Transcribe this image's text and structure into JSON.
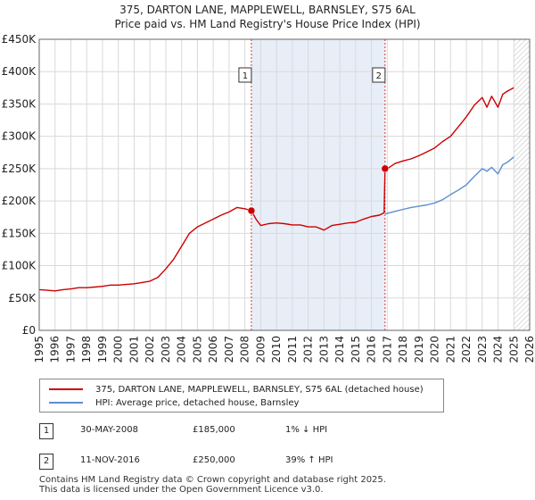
{
  "header": {
    "title_line1": "375, DARTON LANE, MAPPLEWELL, BARNSLEY, S75 6AL",
    "title_line2": "Price paid vs. HM Land Registry's House Price Index (HPI)"
  },
  "chart_data": {
    "type": "line",
    "title": "375, DARTON LANE, MAPPLEWELL, BARNSLEY, S75 6AL — Price paid vs. HM Land Registry's House Price Index (HPI)",
    "xlim": [
      1995,
      2026
    ],
    "ylim": [
      0,
      450000
    ],
    "grid": true,
    "x_ticks": [
      1995,
      1996,
      1997,
      1998,
      1999,
      2000,
      2001,
      2002,
      2003,
      2004,
      2005,
      2006,
      2007,
      2008,
      2009,
      2010,
      2011,
      2012,
      2013,
      2014,
      2015,
      2016,
      2017,
      2018,
      2019,
      2020,
      2021,
      2022,
      2023,
      2024,
      2025,
      2026
    ],
    "y_ticks": [
      {
        "value": 0,
        "label": "£0"
      },
      {
        "value": 50000,
        "label": "£50K"
      },
      {
        "value": 100000,
        "label": "£100K"
      },
      {
        "value": 150000,
        "label": "£150K"
      },
      {
        "value": 200000,
        "label": "£200K"
      },
      {
        "value": 250000,
        "label": "£250K"
      },
      {
        "value": 300000,
        "label": "£300K"
      },
      {
        "value": 350000,
        "label": "£350K"
      },
      {
        "value": 400000,
        "label": "£400K"
      },
      {
        "value": 450000,
        "label": "£450K"
      }
    ],
    "shaded_period": [
      2008.41,
      2016.86
    ],
    "forecast_start": 2025.0,
    "series": [
      {
        "name": "375, DARTON LANE, MAPPLEWELL, BARNSLEY, S75 6AL (detached house)",
        "color": "#cc0000",
        "x": [
          1995.0,
          1995.5,
          1996.0,
          1996.5,
          1997.0,
          1997.5,
          1998.0,
          1998.5,
          1999.0,
          1999.5,
          2000.0,
          2000.5,
          2001.0,
          2001.5,
          2002.0,
          2002.5,
          2003.0,
          2003.5,
          2004.0,
          2004.5,
          2005.0,
          2005.5,
          2006.0,
          2006.5,
          2007.0,
          2007.5,
          2008.0,
          2008.41,
          2008.7,
          2009.0,
          2009.5,
          2010.0,
          2010.5,
          2011.0,
          2011.5,
          2012.0,
          2012.5,
          2013.0,
          2013.5,
          2014.0,
          2014.5,
          2015.0,
          2015.5,
          2016.0,
          2016.5,
          2016.8,
          2016.86,
          2017.0,
          2017.5,
          2018.0,
          2018.5,
          2019.0,
          2019.5,
          2020.0,
          2020.5,
          2021.0,
          2021.5,
          2022.0,
          2022.5,
          2023.0,
          2023.3,
          2023.6,
          2024.0,
          2024.3,
          2024.6,
          2025.0
        ],
        "y": [
          63000,
          62000,
          61000,
          63000,
          64000,
          66000,
          66000,
          67000,
          68000,
          70000,
          70000,
          71000,
          72000,
          74000,
          76000,
          82000,
          95000,
          110000,
          130000,
          150000,
          160000,
          166000,
          172000,
          178000,
          183000,
          190000,
          188000,
          185000,
          172000,
          162000,
          165000,
          166000,
          165000,
          163000,
          163000,
          160000,
          160000,
          155000,
          162000,
          164000,
          166000,
          167000,
          172000,
          176000,
          178000,
          182000,
          250000,
          250000,
          258000,
          262000,
          265000,
          270000,
          276000,
          282000,
          292000,
          300000,
          315000,
          330000,
          348000,
          360000,
          345000,
          362000,
          345000,
          365000,
          370000,
          375000
        ]
      },
      {
        "name": "HPI: Average price, detached house, Barnsley",
        "color": "#5b8fd0",
        "x": [
          2016.86,
          2017.0,
          2017.5,
          2018.0,
          2018.5,
          2019.0,
          2019.5,
          2020.0,
          2020.5,
          2021.0,
          2021.5,
          2022.0,
          2022.5,
          2023.0,
          2023.3,
          2023.6,
          2024.0,
          2024.3,
          2024.6,
          2025.0
        ],
        "y": [
          180000,
          181000,
          184000,
          187000,
          190000,
          192000,
          194000,
          197000,
          202000,
          210000,
          217000,
          225000,
          238000,
          250000,
          246000,
          252000,
          242000,
          256000,
          260000,
          268000
        ]
      }
    ],
    "annotations": [
      {
        "label": "1",
        "x": 2008.41,
        "y": 185000
      },
      {
        "label": "2",
        "x": 2016.86,
        "y": 250000
      }
    ]
  },
  "legend": {
    "entries": [
      {
        "label": "375, DARTON LANE, MAPPLEWELL, BARNSLEY, S75 6AL (detached house)",
        "color": "#cc0000"
      },
      {
        "label": "HPI: Average price, detached house, Barnsley",
        "color": "#5b8fd0"
      }
    ]
  },
  "sales": [
    {
      "num": "1",
      "date": "30-MAY-2008",
      "price": "£185,000",
      "hpi": "1% ↓ HPI"
    },
    {
      "num": "2",
      "date": "11-NOV-2016",
      "price": "£250,000",
      "hpi": "39% ↑ HPI"
    }
  ],
  "footer": {
    "line1": "Contains HM Land Registry data © Crown copyright and database right 2025.",
    "line2": "This data is licensed under the Open Government Licence v3.0."
  }
}
